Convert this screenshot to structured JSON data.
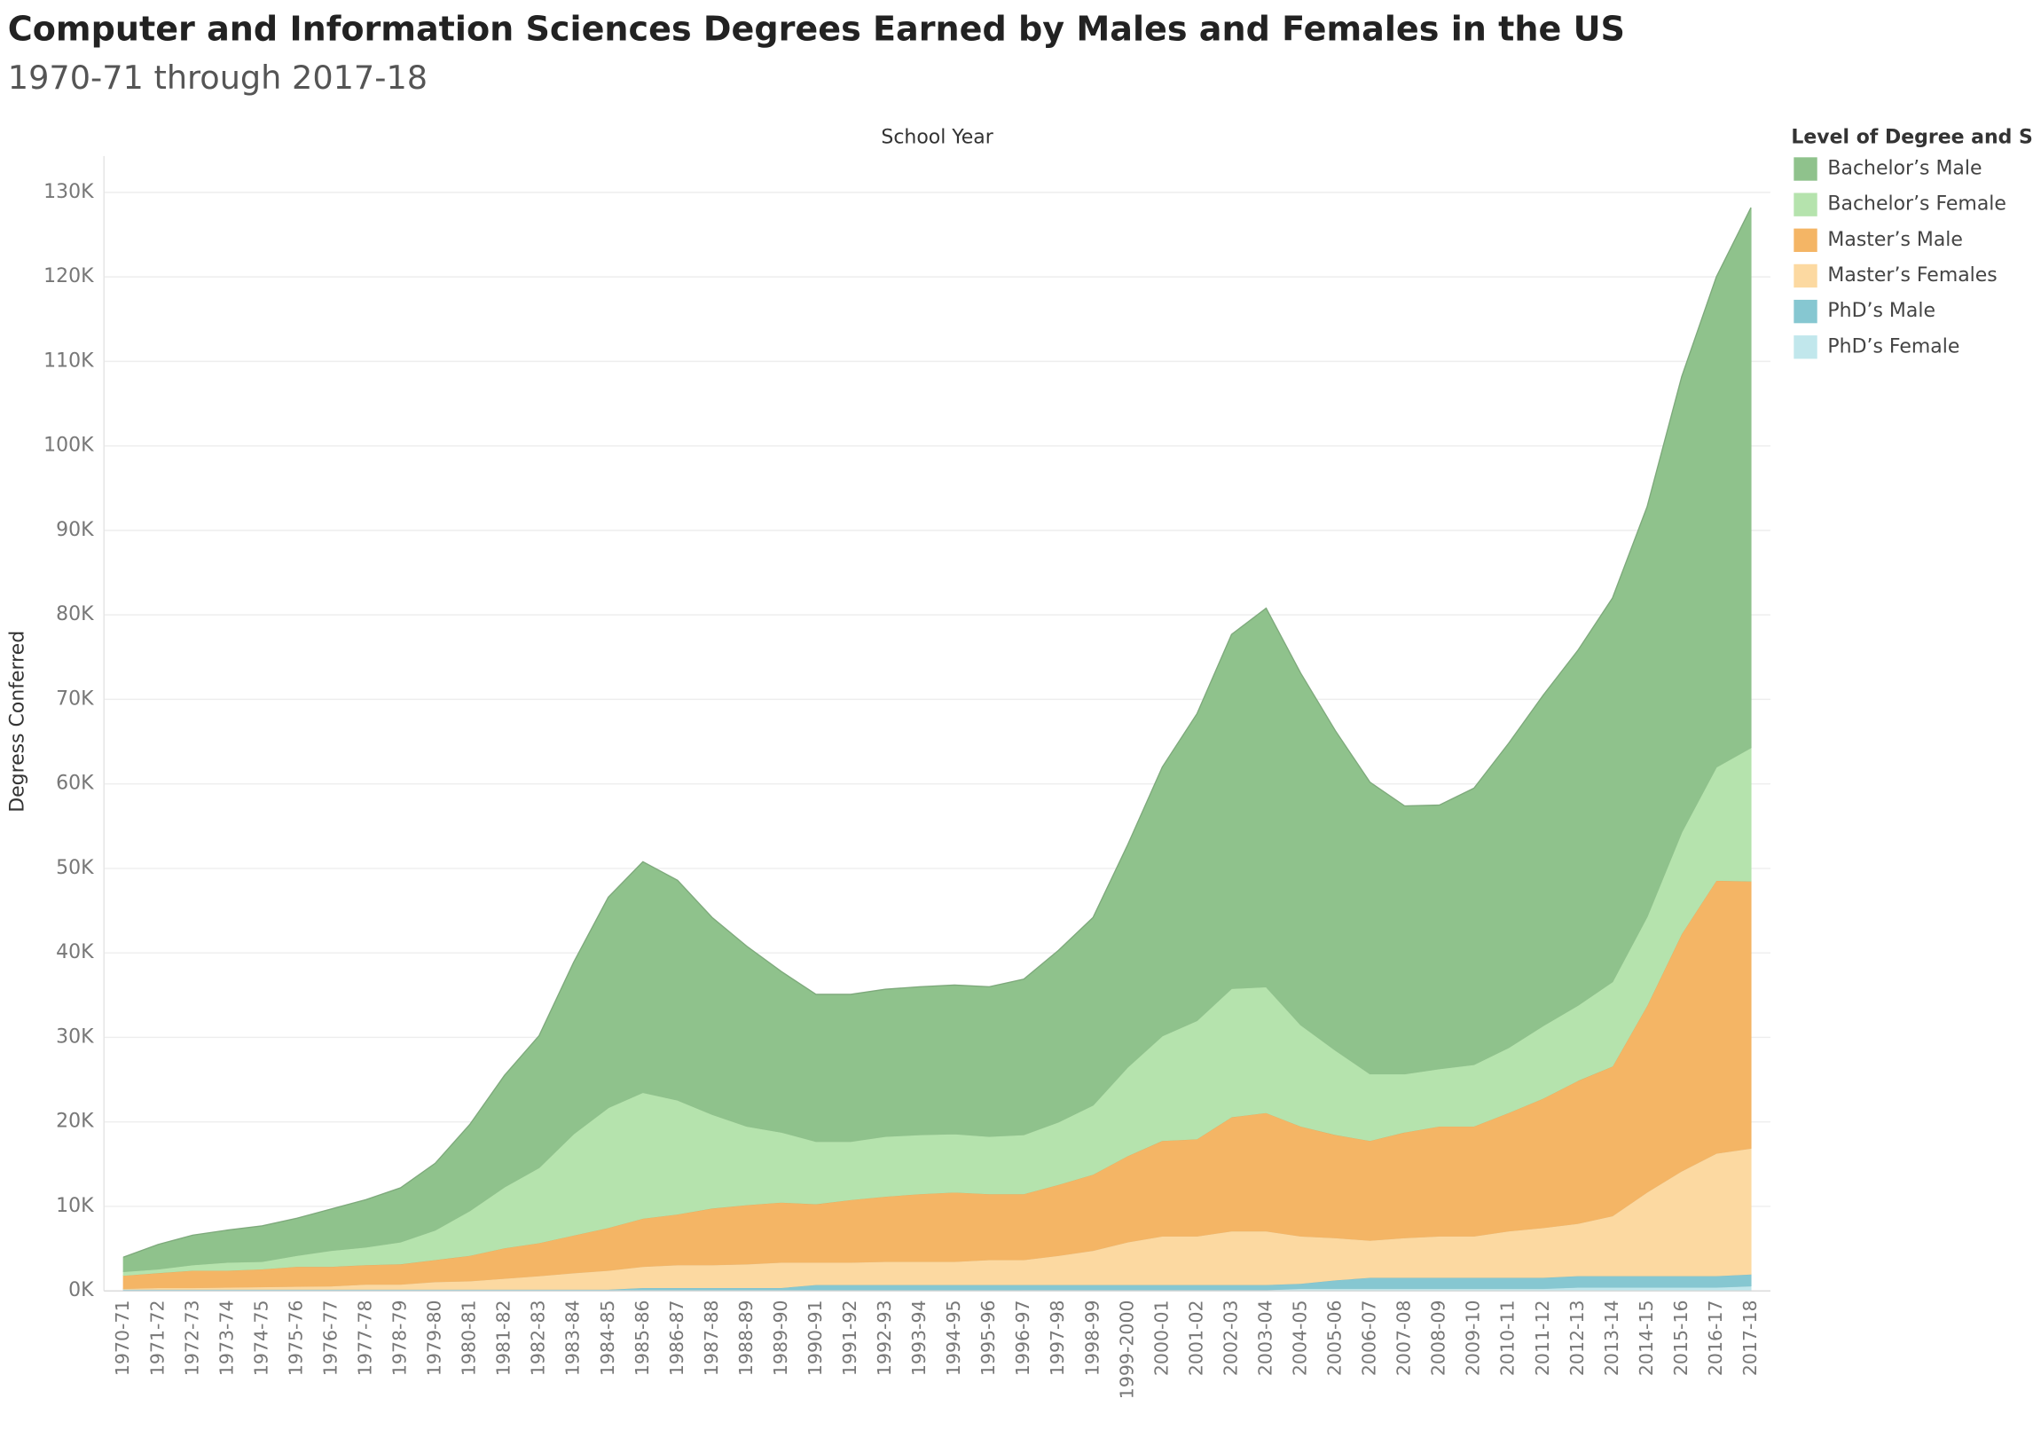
{
  "chart_data": {
    "type": "stacked-area",
    "title": "Computer and Information Sciences Degrees Earned by Males and Females in the US",
    "subtitle": "1970-71 through 2017-18",
    "x_label": "School Year",
    "y_label": "Degress Conferred",
    "legend_title": "Level of Degree and Sex",
    "legend": "right",
    "grid": true,
    "categories": [
      "1970-71",
      "1971-72",
      "1972-73",
      "1973-74",
      "1974-75",
      "1975-76",
      "1976-77",
      "1977-78",
      "1978-79",
      "1979-80",
      "1980-81",
      "1981-82",
      "1982-83",
      "1983-84",
      "1984-85",
      "1985-86",
      "1986-87",
      "1987-88",
      "1988-89",
      "1989-90",
      "1990-91",
      "1991-92",
      "1992-93",
      "1993-94",
      "1994-95",
      "1995-96",
      "1996-97",
      "1997-98",
      "1998-99",
      "1999-2000",
      "2000-01",
      "2001-02",
      "2002-03",
      "2003-04",
      "2004-05",
      "2005-06",
      "2006-07",
      "2007-08",
      "2008-09",
      "2009-10",
      "2010-11",
      "2011-12",
      "2012-13",
      "2013-14",
      "2014-15",
      "2015-16",
      "2016-17",
      "2017-18"
    ],
    "ylim": [
      0,
      130000
    ],
    "yticks": [
      {
        "value": 0,
        "label": "0K"
      },
      {
        "value": 10000,
        "label": "10K"
      },
      {
        "value": 20000,
        "label": "20K"
      },
      {
        "value": 30000,
        "label": "30K"
      },
      {
        "value": 40000,
        "label": "40K"
      },
      {
        "value": 50000,
        "label": "50K"
      },
      {
        "value": 60000,
        "label": "60K"
      },
      {
        "value": 70000,
        "label": "70K"
      },
      {
        "value": 80000,
        "label": "80K"
      },
      {
        "value": 90000,
        "label": "90K"
      },
      {
        "value": 100000,
        "label": "100K"
      },
      {
        "value": 110000,
        "label": "110K"
      },
      {
        "value": 120000,
        "label": "120K"
      },
      {
        "value": 130000,
        "label": "130K"
      }
    ],
    "series": [
      {
        "name": "Bachelor’s Male",
        "color": "#8fc28c",
        "values": [
          1700,
          2900,
          3500,
          3800,
          4200,
          4400,
          4900,
          5600,
          6400,
          7900,
          10200,
          13200,
          15600,
          20300,
          24900,
          27300,
          26000,
          23300,
          21300,
          19000,
          17400,
          17400,
          17400,
          17500,
          17600,
          17700,
          18400,
          20300,
          22200,
          26300,
          31800,
          36300,
          41900,
          44800,
          41600,
          37800,
          34500,
          31700,
          31200,
          32700,
          36000,
          39100,
          42000,
          45400,
          48500,
          53900,
          58000,
          63900
        ]
      },
      {
        "name": "Bachelor’s Female",
        "color": "#b5e3ad",
        "values": [
          450,
          450,
          650,
          950,
          900,
          1300,
          1900,
          2100,
          2600,
          3500,
          5300,
          7200,
          8900,
          12000,
          14200,
          14900,
          13500,
          11100,
          9300,
          8300,
          7400,
          6900,
          7100,
          7000,
          6900,
          6800,
          7000,
          7400,
          8200,
          10500,
          12400,
          14000,
          15200,
          14900,
          12000,
          10000,
          7900,
          6900,
          6800,
          7300,
          7700,
          8600,
          8900,
          10000,
          10500,
          12000,
          13400,
          15800
        ]
      },
      {
        "name": "Master’s Male",
        "color": "#f4b565",
        "values": [
          1550,
          1750,
          2050,
          2000,
          2100,
          2350,
          2300,
          2300,
          2400,
          2600,
          3000,
          3600,
          3900,
          4450,
          5050,
          5700,
          6000,
          6700,
          7000,
          7100,
          6900,
          7400,
          7700,
          8000,
          8200,
          7800,
          7800,
          8400,
          9000,
          10200,
          11300,
          11500,
          13500,
          14000,
          13000,
          12200,
          11800,
          12500,
          13000,
          13000,
          14000,
          15300,
          16900,
          17700,
          22100,
          28100,
          32300,
          31600
        ]
      },
      {
        "name": "Master’s Females",
        "color": "#fcd9a1",
        "values": [
          100,
          200,
          200,
          250,
          300,
          350,
          400,
          600,
          600,
          900,
          1000,
          1300,
          1600,
          1950,
          2250,
          2500,
          2700,
          2700,
          2800,
          3000,
          2650,
          2650,
          2750,
          2750,
          2750,
          2950,
          2950,
          3450,
          4050,
          5050,
          5750,
          5750,
          6350,
          6350,
          5600,
          5000,
          4400,
          4700,
          4900,
          4900,
          5500,
          5900,
          6200,
          7100,
          9900,
          12400,
          14500,
          14900
        ]
      },
      {
        "name": "PhD’s Male",
        "color": "#86c7d1",
        "values": [
          180,
          180,
          180,
          180,
          180,
          180,
          180,
          180,
          180,
          180,
          180,
          180,
          180,
          180,
          180,
          350,
          350,
          350,
          350,
          350,
          700,
          700,
          700,
          700,
          700,
          700,
          600,
          600,
          600,
          600,
          600,
          600,
          600,
          600,
          600,
          1000,
          1300,
          1300,
          1300,
          1300,
          1300,
          1300,
          1350,
          1350,
          1350,
          1350,
          1350,
          1400
        ]
      },
      {
        "name": "PhD’s Female",
        "color": "#c1e7ec",
        "values": [
          20,
          20,
          20,
          20,
          20,
          20,
          20,
          20,
          20,
          20,
          20,
          20,
          20,
          20,
          20,
          50,
          50,
          50,
          50,
          50,
          50,
          50,
          50,
          50,
          50,
          50,
          150,
          150,
          150,
          150,
          150,
          150,
          150,
          150,
          300,
          300,
          300,
          300,
          300,
          300,
          300,
          300,
          450,
          450,
          450,
          450,
          450,
          600
        ]
      }
    ]
  }
}
